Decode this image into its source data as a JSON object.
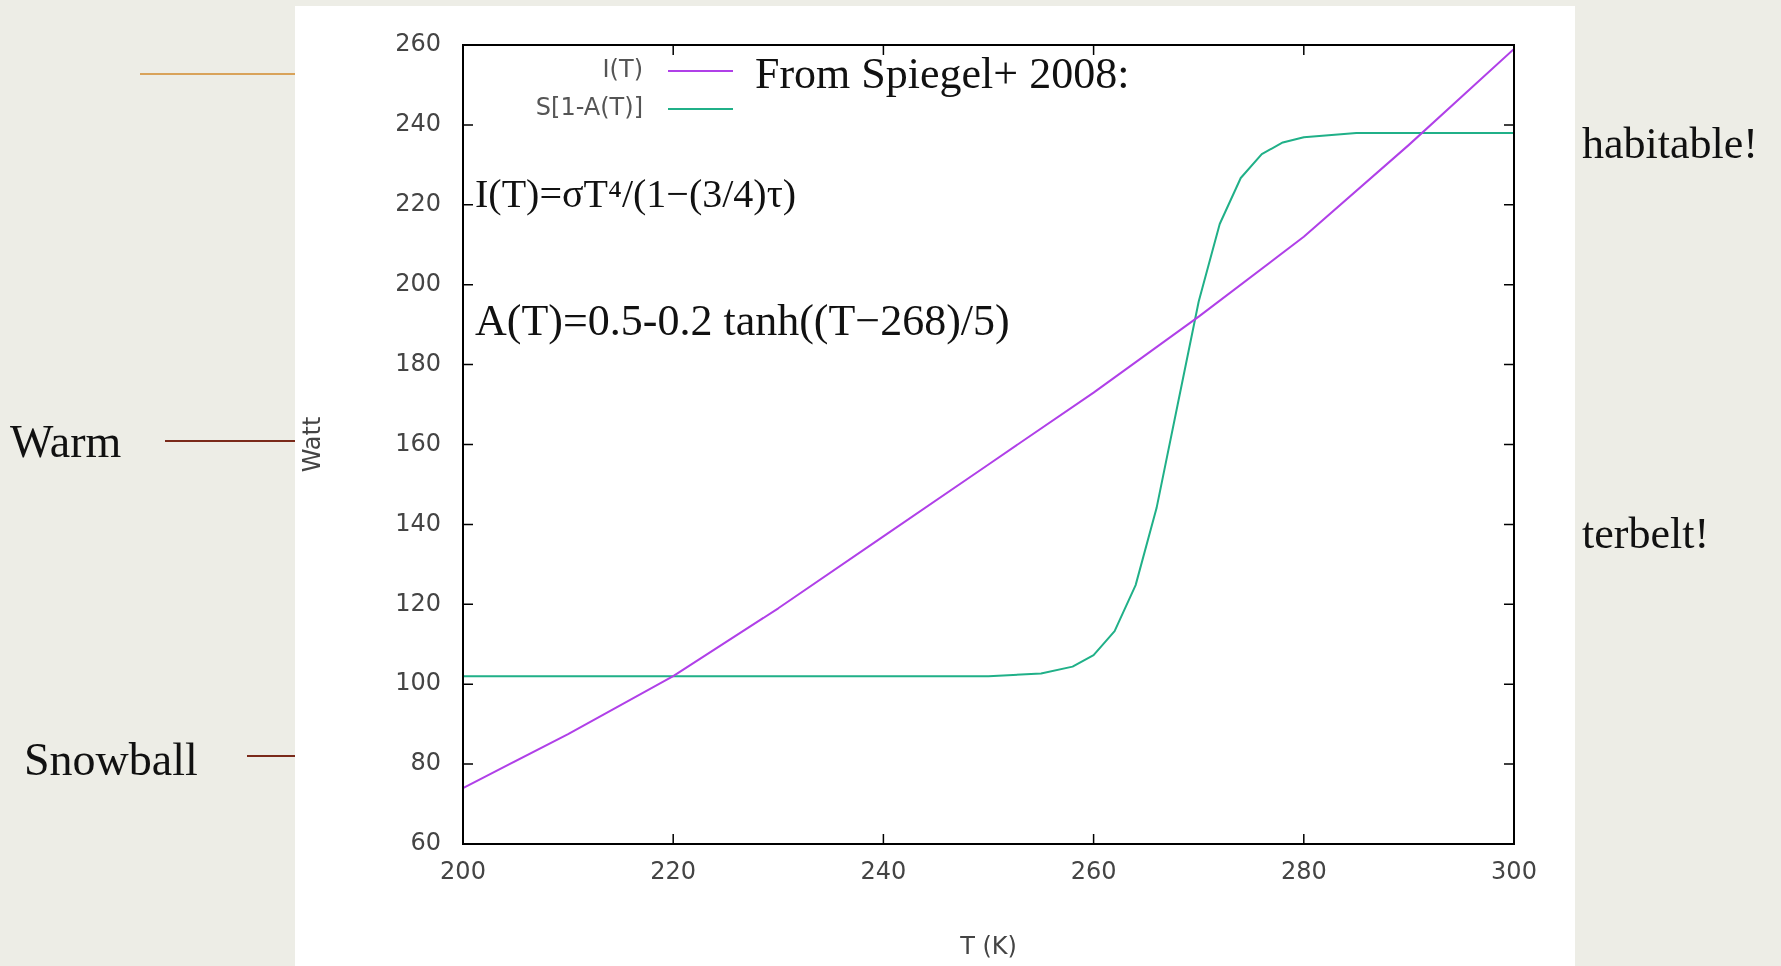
{
  "chart_data": {
    "type": "line",
    "xlabel": "T (K)",
    "ylabel": "Watt",
    "xlim": [
      200,
      300
    ],
    "xticks": [
      200,
      220,
      240,
      260,
      280,
      300
    ],
    "ylim": [
      60,
      260
    ],
    "yticks": [
      60,
      80,
      100,
      120,
      140,
      160,
      180,
      200,
      220,
      240,
      260
    ],
    "grid": false,
    "legend": "top left",
    "marker": "none",
    "line_style": "solid",
    "series": [
      {
        "name": "I(T)",
        "color": "#b040e8",
        "x": [
          200,
          210,
          220,
          230,
          240,
          250,
          260,
          270,
          280,
          290,
          300
        ],
        "values": [
          74,
          87.5,
          102,
          119,
          137,
          155,
          173,
          192,
          212,
          235,
          259
        ]
      },
      {
        "name": "S[1-A(T)]",
        "color": "#20b088",
        "x": [
          200,
          220,
          240,
          250,
          255,
          258,
          260,
          262,
          264,
          266,
          268,
          270,
          272,
          274,
          276,
          278,
          280,
          285,
          290,
          300
        ],
        "values": [
          102,
          102,
          102,
          102,
          102.7,
          104.4,
          107.3,
          113.3,
          124.8,
          144.2,
          170,
          195.8,
          215.2,
          226.7,
          232.7,
          235.6,
          236.9,
          238,
          238,
          238
        ]
      }
    ],
    "annotations": [
      "From Spiegel+ 2008:",
      "I(T)=σT⁴/(1−(3/4)τ)",
      "A(T)=0.5-0.2 tanh((T−268)/5)",
      "Warm",
      "Snowball",
      "habitable!",
      "terbelt!"
    ]
  }
}
